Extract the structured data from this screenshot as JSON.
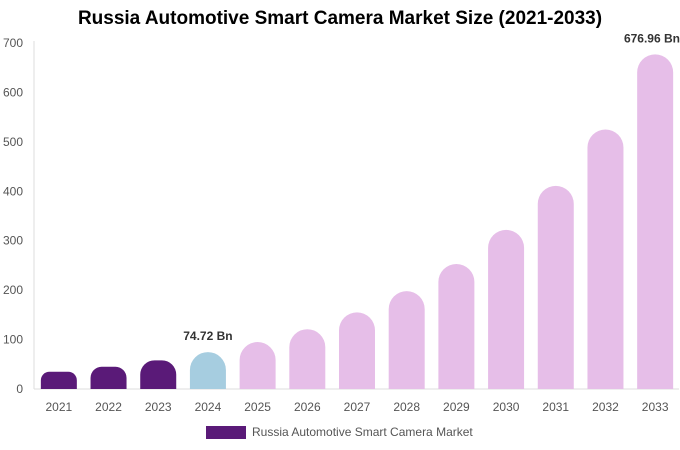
{
  "chart_data": {
    "type": "bar",
    "title": "Russia Automotive Smart Camera Market Size (2021-2033)",
    "categories": [
      "2021",
      "2022",
      "2023",
      "2024",
      "2025",
      "2026",
      "2027",
      "2028",
      "2029",
      "2030",
      "2031",
      "2032",
      "2033"
    ],
    "series": [
      {
        "name": "Russia Automotive Smart Camera Market",
        "values": [
          35,
          45,
          58,
          74.72,
          95,
          121,
          155,
          198,
          253,
          322,
          411,
          525,
          676.96
        ]
      }
    ],
    "data_labels": [
      {
        "category": "2024",
        "text": "74.72 Bn"
      },
      {
        "category": "2033",
        "text": "676.96 Bn"
      }
    ],
    "ylim": [
      0,
      700
    ],
    "yticks": [
      0,
      100,
      200,
      300,
      400,
      500,
      600,
      700
    ],
    "xlabel": "",
    "ylabel": "",
    "grid": false,
    "legend_position": "bottom-center",
    "colors": {
      "historical": "#5a1a78",
      "base_year": "#a6cde0",
      "forecast": "#e6bee8",
      "legend_swatch": "#5a1a78"
    }
  }
}
